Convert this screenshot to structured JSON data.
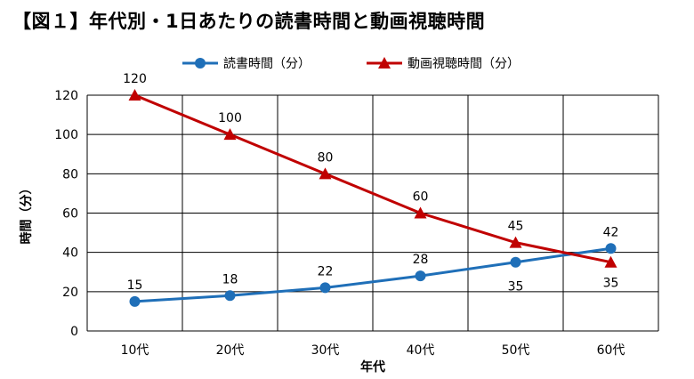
{
  "chart_data": {
    "type": "line",
    "title": "【図１】年代別・1日あたりの読書時間と動画視聴時間",
    "categories": [
      "10代",
      "20代",
      "30代",
      "40代",
      "50代",
      "60代"
    ],
    "series": [
      {
        "name": "読書時間（分）",
        "values": [
          15,
          18,
          22,
          28,
          35,
          42
        ],
        "color": "#1f6fb8",
        "marker": "circle"
      },
      {
        "name": "動画視聴時間（分）",
        "values": [
          120,
          100,
          80,
          60,
          45,
          35
        ],
        "color": "#c00000",
        "marker": "triangle"
      }
    ],
    "xlabel": "年代",
    "ylabel": "時間（分）",
    "ylim": [
      0,
      120
    ],
    "yticks": [
      0,
      20,
      40,
      60,
      80,
      100,
      120
    ],
    "grid": true,
    "legend": "top-center"
  }
}
